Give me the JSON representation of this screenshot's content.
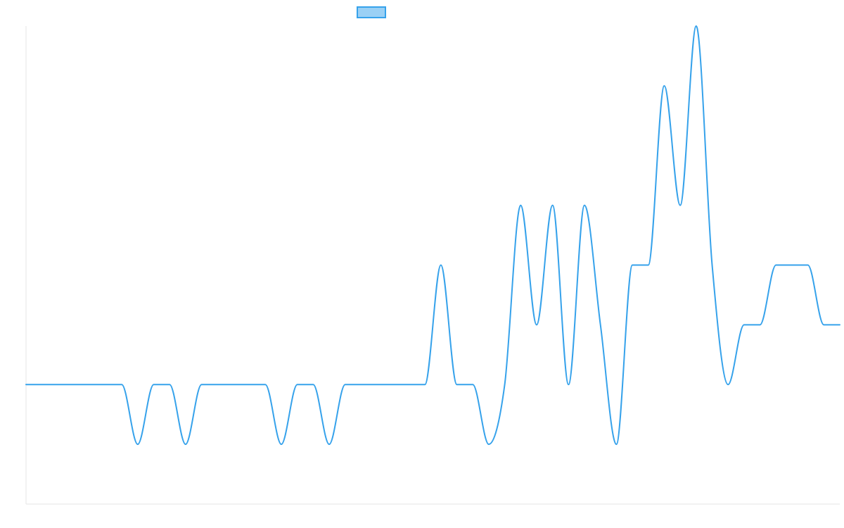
{
  "chart_data": {
    "type": "line",
    "title": "",
    "xlabel": "",
    "ylabel": "",
    "grid": false,
    "legend": {
      "position": "top",
      "entries": [
        {
          "label": "",
          "fill_color": "#9ad0f5",
          "border_color": "#36a2eb"
        }
      ]
    },
    "ylim": [
      -2,
      6
    ],
    "series": [
      {
        "color": "#36a2eb",
        "x": [
          0,
          1,
          2,
          3,
          4,
          5,
          6,
          7,
          8,
          9,
          10,
          11,
          12,
          13,
          14,
          15,
          16,
          17,
          18,
          19,
          20,
          21,
          22,
          23,
          24,
          25,
          26,
          27,
          28,
          29,
          30,
          31,
          32,
          33,
          34,
          35,
          36,
          37,
          38,
          39,
          40,
          41,
          42,
          43,
          44,
          45,
          46,
          47,
          48,
          49,
          50,
          51
        ],
        "values": [
          0,
          0,
          0,
          0,
          0,
          0,
          0,
          -1,
          0,
          0,
          -1,
          0,
          0,
          0,
          0,
          0,
          -1,
          0,
          0,
          -1,
          0,
          0,
          0,
          0,
          0,
          0,
          2,
          0,
          0,
          -1,
          0,
          3,
          1,
          3,
          0,
          3,
          1,
          -1,
          2,
          2,
          5,
          3,
          6,
          2,
          0,
          1,
          1,
          2,
          2,
          2,
          1,
          1
        ]
      }
    ]
  }
}
